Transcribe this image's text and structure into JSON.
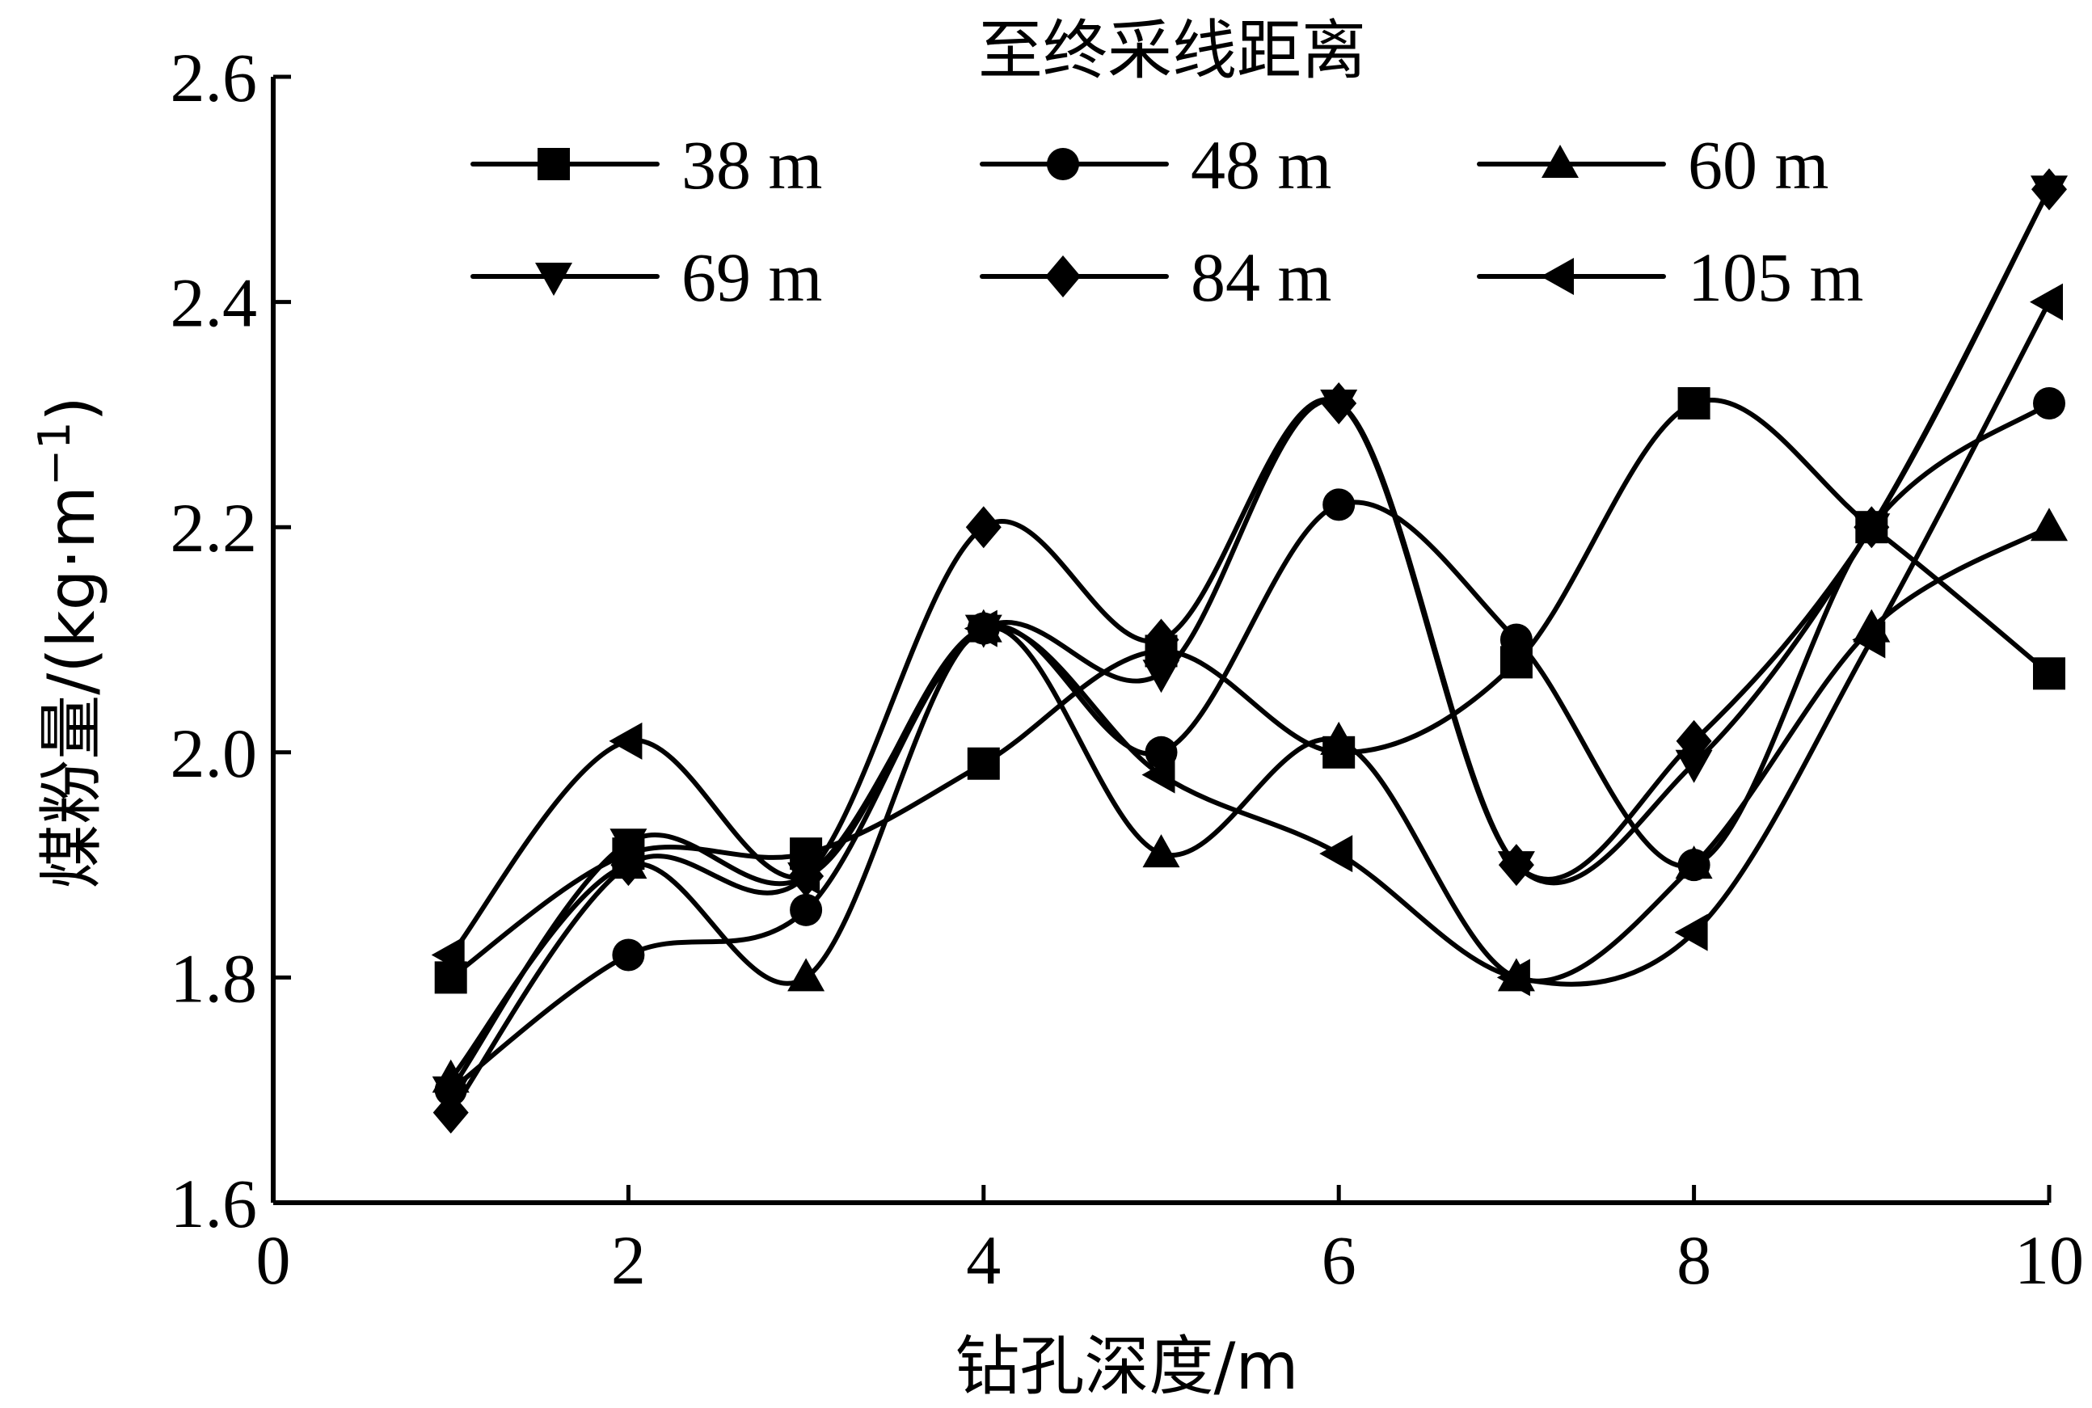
{
  "chart_data": {
    "type": "line",
    "title": "",
    "legend_title": "至终采线距离",
    "legend_position": "top",
    "xlabel": "钻孔深度/m",
    "ylabel": "煤粉量/(kg·m⁻¹)",
    "ylabel_main": "煤粉量/(kg·m",
    "ylabel_sup": "−1",
    "ylabel_end": ")",
    "xlim": [
      0,
      10
    ],
    "ylim": [
      1.6,
      2.6
    ],
    "xticks": [
      "0",
      "2",
      "4",
      "6",
      "8",
      "10"
    ],
    "yticks": [
      "1.6",
      "1.8",
      "2.0",
      "2.2",
      "2.4",
      "2.6"
    ],
    "grid": false,
    "x": [
      1,
      2,
      3,
      4,
      5,
      6,
      7,
      8,
      9,
      10
    ],
    "series": [
      {
        "name": "38 m",
        "marker": "square",
        "values": [
          1.8,
          1.91,
          1.91,
          1.99,
          2.09,
          2.0,
          2.08,
          2.31,
          2.2,
          2.07
        ]
      },
      {
        "name": "48 m",
        "marker": "circle",
        "values": [
          1.7,
          1.82,
          1.86,
          2.11,
          2.0,
          2.22,
          2.1,
          1.9,
          2.2,
          2.31
        ]
      },
      {
        "name": "60 m",
        "marker": "triangle-up",
        "values": [
          1.71,
          1.9,
          1.8,
          2.11,
          1.91,
          2.01,
          1.8,
          1.9,
          2.11,
          2.2
        ]
      },
      {
        "name": "69 m",
        "marker": "triangle-down",
        "values": [
          1.7,
          1.92,
          1.89,
          2.11,
          2.07,
          2.31,
          1.9,
          1.99,
          2.2,
          2.5
        ]
      },
      {
        "name": "84 m",
        "marker": "diamond",
        "values": [
          1.68,
          1.9,
          1.89,
          2.2,
          2.1,
          2.31,
          1.9,
          2.01,
          2.2,
          2.5
        ]
      },
      {
        "name": "105 m",
        "marker": "triangle-left",
        "values": [
          1.82,
          2.01,
          1.89,
          2.11,
          1.98,
          1.91,
          1.8,
          1.84,
          2.1,
          2.4
        ]
      }
    ]
  }
}
